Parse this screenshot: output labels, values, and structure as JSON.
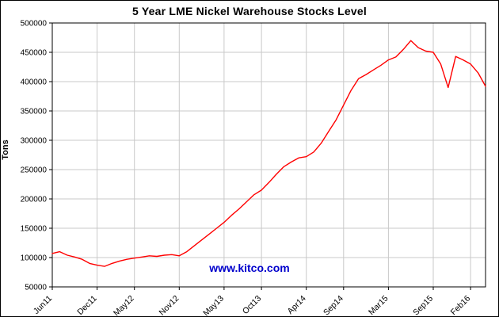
{
  "page": {
    "title": "5 Year LME Nickel Warehouse Stocks Level",
    "watermark_text": "www.kitco.com"
  },
  "chart_data": {
    "type": "line",
    "title": "5 Year LME Nickel Warehouse Stocks Level",
    "xlabel": "",
    "ylabel": "Tons",
    "ylim": [
      50000,
      500000
    ],
    "y_tick_step": 50000,
    "grid": true,
    "legend_position": "none",
    "line_color": "#ff0000",
    "grid_color": "#c9c9c9",
    "watermark_text": "www.kitco.com",
    "watermark_color": "#0000cc",
    "x_tick_labels": [
      "Jun11",
      "Dec11",
      "May12",
      "Nov12",
      "May13",
      "Oct13",
      "Apr14",
      "Sep14",
      "Mar15",
      "Sep15",
      "Feb16"
    ],
    "x_tick_indices": [
      0,
      6,
      11,
      17,
      23,
      28,
      34,
      39,
      45,
      51,
      56
    ],
    "x_unit": "month",
    "series": [
      {
        "name": "LME Nickel Warehouse Stocks (tons)",
        "values": [
          107000,
          110000,
          104000,
          101000,
          97000,
          90000,
          87000,
          85000,
          90000,
          94000,
          97000,
          99000,
          101000,
          103000,
          102000,
          104000,
          105000,
          103000,
          110000,
          120000,
          130000,
          140000,
          150000,
          160000,
          172000,
          183000,
          195000,
          207000,
          215000,
          228000,
          242000,
          255000,
          263000,
          270000,
          272000,
          280000,
          295000,
          315000,
          335000,
          360000,
          385000,
          405000,
          412000,
          420000,
          428000,
          437000,
          442000,
          455000,
          470000,
          458000,
          452000,
          450000,
          430000,
          390000,
          443000,
          437000,
          430000,
          415000,
          392000
        ]
      }
    ]
  }
}
